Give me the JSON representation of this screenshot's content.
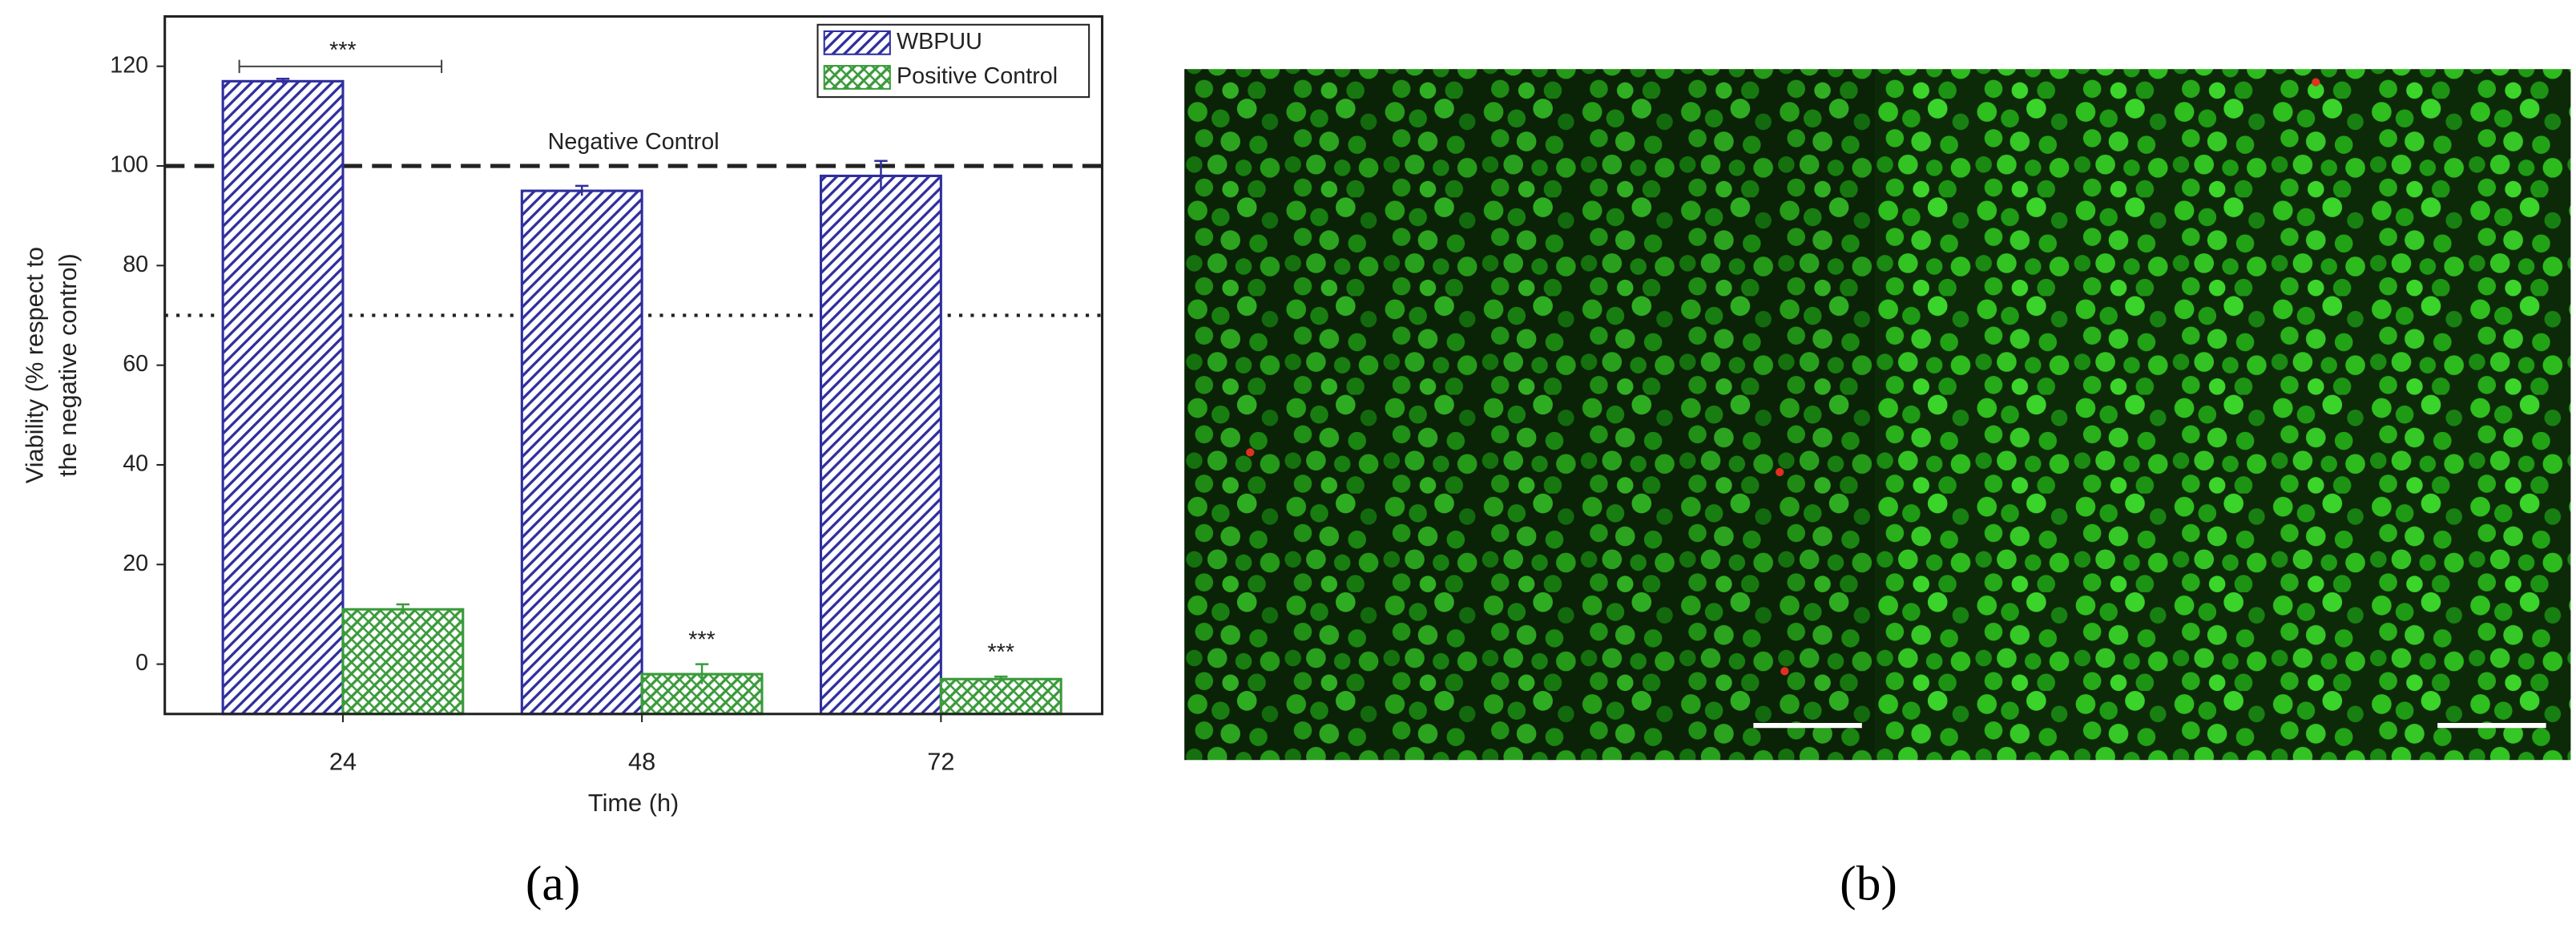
{
  "chart_data": {
    "type": "bar",
    "categories": [
      "24",
      "48",
      "72"
    ],
    "series": [
      {
        "name": "WBPUU",
        "color": "#2e2e9e",
        "values": [
          117,
          95,
          98
        ],
        "errors": [
          0.5,
          1,
          3
        ]
      },
      {
        "name": "Positive Control",
        "color": "#3a9a3a",
        "values": [
          11,
          -2,
          -3
        ],
        "errors": [
          1,
          2,
          0.5
        ]
      }
    ],
    "ylim": [
      -10,
      130
    ],
    "yticks": [
      0,
      20,
      40,
      60,
      80,
      100,
      120
    ],
    "ylabel": [
      "Viability (% respect to",
      "the negative control)"
    ],
    "xlabel": "Time (h)",
    "reference_lines": [
      {
        "value": 100,
        "label": "Negative Control",
        "style": "dashed"
      },
      {
        "value": 70,
        "style": "dotted"
      }
    ],
    "annotations": [
      "***",
      "***",
      "***"
    ],
    "panel_labels": [
      "(a)",
      "(b)"
    ],
    "legend": "upper right"
  }
}
